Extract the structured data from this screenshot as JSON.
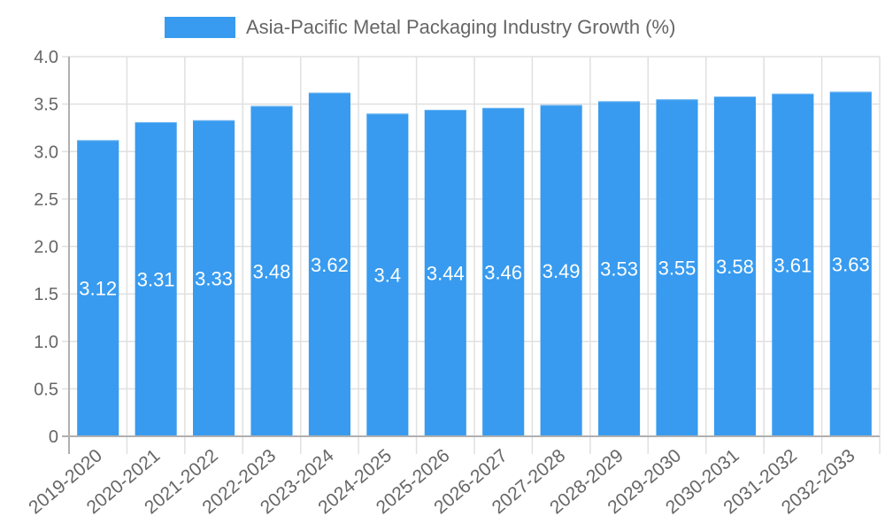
{
  "chart_data": {
    "type": "bar",
    "title": "",
    "legend": [
      {
        "label": "Asia-Pacific Metal Packaging Industry Growth (%)",
        "color": "#389BEF"
      }
    ],
    "legend_position": "top",
    "categories": [
      "2019-2020",
      "2020-2021",
      "2021-2022",
      "2022-2023",
      "2023-2024",
      "2024-2025",
      "2025-2026",
      "2026-2027",
      "2027-2028",
      "2028-2029",
      "2029-2030",
      "2030-2031",
      "2031-2032",
      "2032-2033"
    ],
    "series": [
      {
        "name": "Asia-Pacific Metal Packaging Industry Growth (%)",
        "values": [
          3.12,
          3.31,
          3.33,
          3.48,
          3.62,
          3.4,
          3.44,
          3.46,
          3.49,
          3.53,
          3.55,
          3.58,
          3.61,
          3.63
        ],
        "data_labels": [
          "3.12",
          "3.31",
          "3.33",
          "3.48",
          "3.62",
          "3.4",
          "3.44",
          "3.46",
          "3.49",
          "3.53",
          "3.55",
          "3.58",
          "3.61",
          "3.63"
        ],
        "color": "#389BEF"
      }
    ],
    "xlabel": "",
    "ylabel": "",
    "ylim": [
      0,
      4.0
    ],
    "yticks": [
      "0",
      "0.5",
      "1.0",
      "1.5",
      "2.0",
      "2.5",
      "3.0",
      "3.5",
      "4.0"
    ],
    "grid": true,
    "x_tick_rotation": -40
  },
  "colors": {
    "bar": "#389BEF",
    "grid": "#e0e0e0",
    "axis": "#b0b0b0",
    "tick_text": "#666666",
    "data_label": "#ffffff"
  }
}
